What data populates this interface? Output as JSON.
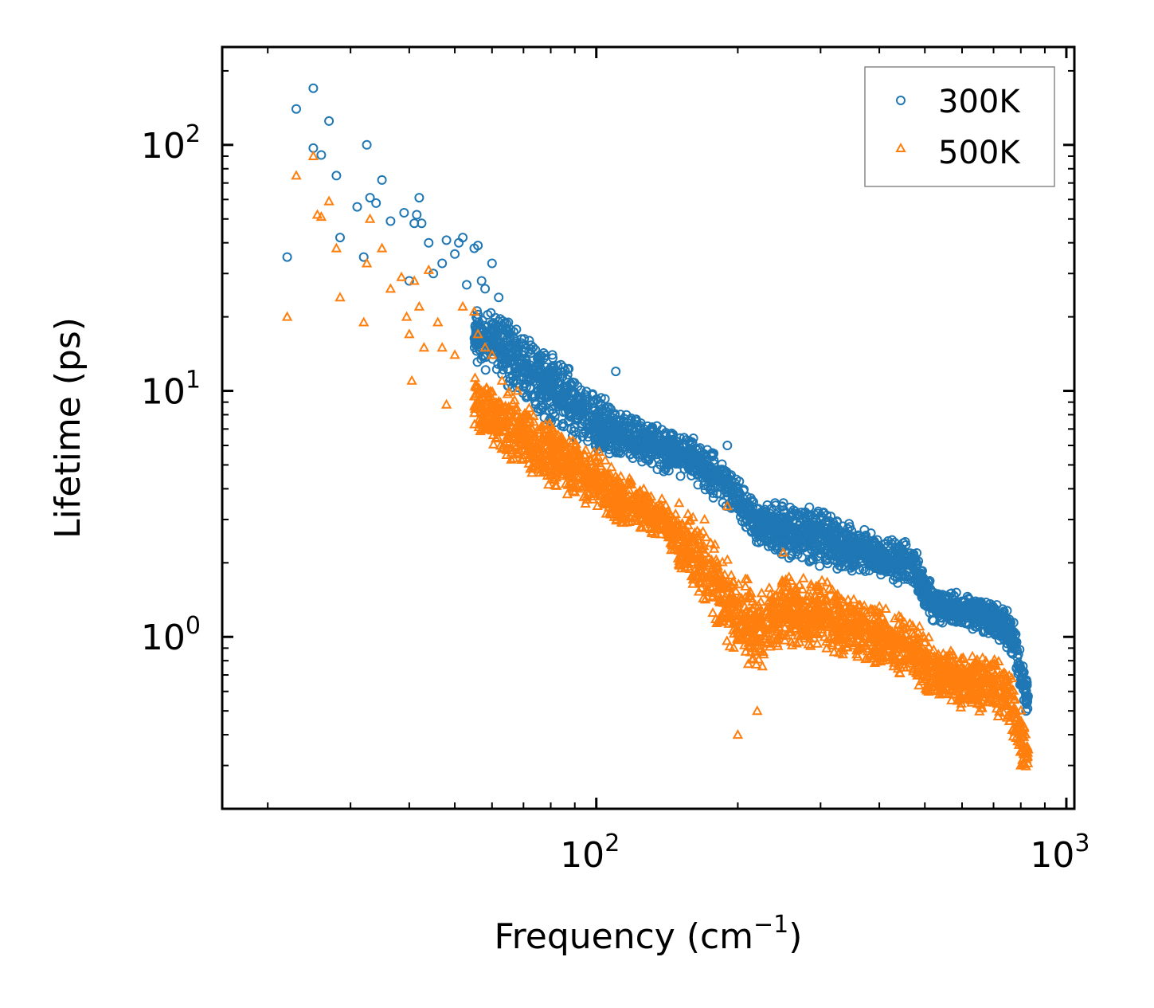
{
  "chart_data": {
    "type": "scatter",
    "xscale": "log",
    "yscale": "log",
    "xlim": [
      16,
      1040
    ],
    "ylim": [
      0.2,
      250
    ],
    "xlabel": "Frequency (cm",
    "xlabel_sup": "−1",
    "xlabel_end": ")",
    "ylabel": "Lifetime (ps)",
    "xticks": [
      {
        "value": 100,
        "base": "10",
        "exp": "2"
      },
      {
        "value": 1000,
        "base": "10",
        "exp": "3"
      }
    ],
    "yticks": [
      {
        "value": 1,
        "base": "10",
        "exp": "0"
      },
      {
        "value": 10,
        "base": "10",
        "exp": "1"
      },
      {
        "value": 100,
        "base": "10",
        "exp": "2"
      }
    ],
    "legend_position": "top-right",
    "series": [
      {
        "name": "300K",
        "marker": "circle",
        "color": "#1f77b4",
        "points": [
          [
            22,
            35
          ],
          [
            23,
            140
          ],
          [
            25,
            170
          ],
          [
            25,
            97
          ],
          [
            26,
            91
          ],
          [
            27,
            125
          ],
          [
            28,
            75
          ],
          [
            28.5,
            42
          ],
          [
            31,
            56
          ],
          [
            32,
            35
          ],
          [
            32.5,
            100
          ],
          [
            33,
            61
          ],
          [
            34,
            58
          ],
          [
            35,
            72
          ],
          [
            36.5,
            49
          ],
          [
            39,
            53
          ],
          [
            40,
            28
          ],
          [
            41,
            48
          ],
          [
            41.5,
            52
          ],
          [
            42,
            61
          ],
          [
            42.5,
            48
          ],
          [
            44,
            40
          ],
          [
            45,
            30
          ],
          [
            47,
            33
          ],
          [
            48,
            41
          ],
          [
            50,
            36
          ],
          [
            51,
            40
          ],
          [
            52,
            42
          ],
          [
            53,
            27
          ],
          [
            55,
            38
          ],
          [
            56,
            39
          ],
          [
            57,
            28
          ],
          [
            58,
            26
          ],
          [
            60,
            33
          ],
          [
            62,
            24
          ],
          [
            65,
            19
          ],
          [
            68,
            15
          ],
          [
            72,
            16
          ],
          [
            75,
            12
          ],
          [
            80,
            11
          ],
          [
            85,
            9
          ],
          [
            90,
            8.5
          ],
          [
            110,
            12
          ],
          [
            150,
            6
          ],
          [
            190,
            6
          ],
          [
            240,
            3.5
          ],
          [
            300,
            2.3
          ],
          [
            400,
            2.0
          ],
          [
            600,
            1.2
          ]
        ],
        "bands": [
          [
            [
              55,
              13,
              22
            ],
            [
              65,
              10,
              20
            ],
            [
              80,
              7,
              15
            ],
            [
              100,
              5.5,
              10
            ],
            [
              120,
              5.0,
              8.2
            ],
            [
              140,
              4.6,
              7.0
            ],
            [
              160,
              4.2,
              6.5
            ],
            [
              180,
              3.6,
              5.6
            ],
            [
              200,
              3.0,
              4.6
            ],
            [
              220,
              2.3,
              3.6
            ],
            [
              250,
              2.1,
              3.6
            ],
            [
              300,
              1.9,
              3.4
            ],
            [
              350,
              1.8,
              2.9
            ],
            [
              400,
              1.7,
              2.6
            ],
            [
              470,
              1.6,
              2.5
            ],
            [
              520,
              1.1,
              1.6
            ],
            [
              600,
              1.1,
              1.5
            ],
            [
              700,
              1.0,
              1.45
            ],
            [
              760,
              0.85,
              1.3
            ],
            [
              800,
              0.6,
              0.9
            ],
            [
              830,
              0.45,
              0.65
            ]
          ]
        ]
      },
      {
        "name": "500K",
        "marker": "triangle",
        "color": "#ff7f0e",
        "points": [
          [
            22,
            20
          ],
          [
            23,
            75
          ],
          [
            25,
            90
          ],
          [
            25.5,
            52
          ],
          [
            26,
            51
          ],
          [
            27,
            59
          ],
          [
            28,
            38
          ],
          [
            28.5,
            24
          ],
          [
            32,
            19
          ],
          [
            32.5,
            33
          ],
          [
            33,
            50
          ],
          [
            35,
            38
          ],
          [
            36.5,
            26
          ],
          [
            38.5,
            29
          ],
          [
            39.5,
            20
          ],
          [
            40,
            17
          ],
          [
            40.5,
            11
          ],
          [
            41,
            28
          ],
          [
            42,
            22
          ],
          [
            43,
            15
          ],
          [
            44,
            31
          ],
          [
            46,
            19
          ],
          [
            47,
            15
          ],
          [
            48,
            8.8
          ],
          [
            50,
            14
          ],
          [
            52,
            22
          ],
          [
            55,
            21
          ],
          [
            56,
            17
          ],
          [
            58,
            15
          ],
          [
            60,
            14
          ],
          [
            63,
            11
          ],
          [
            68,
            10
          ],
          [
            72,
            8.5
          ],
          [
            80,
            6
          ],
          [
            90,
            5
          ],
          [
            100,
            4.8
          ],
          [
            150,
            3.5
          ],
          [
            170,
            3.0
          ],
          [
            190,
            3.4
          ],
          [
            200,
            0.4
          ],
          [
            220,
            0.5
          ],
          [
            250,
            2.2
          ],
          [
            300,
            1.5
          ],
          [
            500,
            0.8
          ],
          [
            600,
            0.75
          ],
          [
            800,
            0.3
          ]
        ],
        "bands": [
          [
            [
              55,
              7,
              12
            ],
            [
              65,
              5.2,
              10
            ],
            [
              80,
              4.0,
              7.5
            ],
            [
              100,
              3.2,
              6.0
            ],
            [
              120,
              2.6,
              4.3
            ],
            [
              140,
              2.5,
              3.6
            ],
            [
              160,
              1.5,
              3.2
            ],
            [
              180,
              1.1,
              2.5
            ],
            [
              200,
              0.75,
              1.9
            ],
            [
              220,
              0.7,
              1.6
            ],
            [
              250,
              0.9,
              1.8
            ],
            [
              300,
              0.85,
              1.75
            ],
            [
              350,
              0.8,
              1.5
            ],
            [
              400,
              0.75,
              1.4
            ],
            [
              470,
              0.65,
              1.25
            ],
            [
              520,
              0.55,
              0.95
            ],
            [
              600,
              0.5,
              0.9
            ],
            [
              700,
              0.48,
              0.85
            ],
            [
              760,
              0.4,
              0.75
            ],
            [
              800,
              0.3,
              0.55
            ],
            [
              830,
              0.28,
              0.4
            ]
          ]
        ]
      }
    ]
  }
}
